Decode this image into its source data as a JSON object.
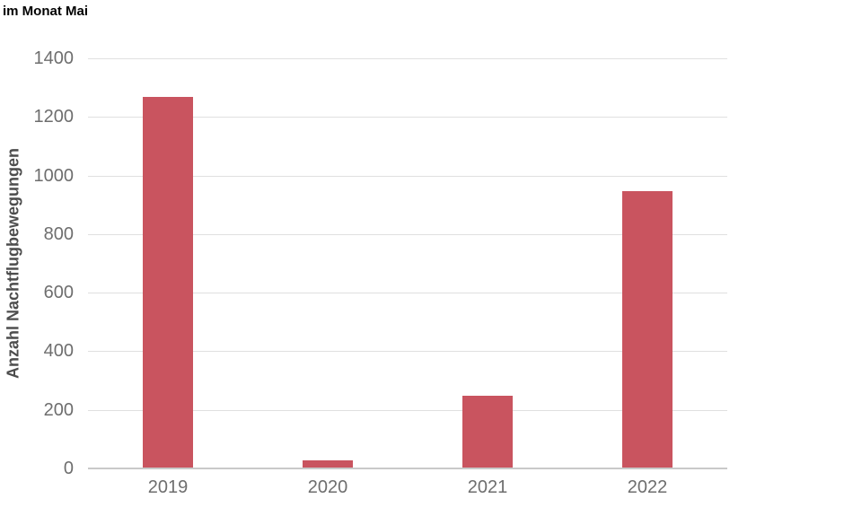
{
  "title": "im Monat Mai",
  "chart_data": {
    "type": "bar",
    "title": "im Monat Mai",
    "categories": [
      "2019",
      "2020",
      "2021",
      "2022"
    ],
    "values": [
      1266,
      25,
      246,
      943
    ],
    "xlabel": "",
    "ylabel": "Anzahl Nachtflugbewegungen",
    "ylim": [
      0,
      1400
    ],
    "yticks": [
      0,
      200,
      400,
      600,
      800,
      1000,
      1200,
      1400
    ],
    "grid": "horizontal",
    "legend": "none",
    "colors": {
      "bar": "#c9545f",
      "gridline": "#e0e0e0",
      "baseline": "#c9c9c9",
      "tick_label": "#6e6e6e",
      "axis_title": "#4d4d4d",
      "title": "#000000"
    }
  }
}
